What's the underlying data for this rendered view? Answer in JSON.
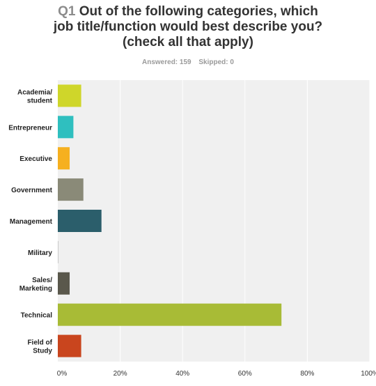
{
  "question": {
    "number": "Q1",
    "lines": [
      "Out of the following categories, which",
      "job title/function would best describe you?",
      "(check all that apply)"
    ]
  },
  "stats": {
    "answered_label": "Answered: 159",
    "skipped_label": "Skipped: 0"
  },
  "chart_data": {
    "type": "bar",
    "orientation": "horizontal",
    "categories": [
      [
        "Academia/",
        "student"
      ],
      [
        "Entrepreneur"
      ],
      [
        "Executive"
      ],
      [
        "Government"
      ],
      [
        "Management"
      ],
      [
        "Military"
      ],
      [
        "Sales/",
        "Marketing"
      ],
      [
        "Technical"
      ],
      [
        "Field of",
        "Study"
      ]
    ],
    "values": [
      7.5,
      5.0,
      3.8,
      8.2,
      14.0,
      0.2,
      3.8,
      71.7,
      7.5
    ],
    "colors": [
      "#cfd62a",
      "#2fbfbf",
      "#f6b01f",
      "#8a8a78",
      "#2b5e6b",
      "#c8c8c8",
      "#5a584c",
      "#a8bb36",
      "#c9451e"
    ],
    "xlim": [
      0,
      100
    ],
    "xticks": [
      "0%",
      "20%",
      "40%",
      "60%",
      "80%",
      "100%"
    ],
    "grid": true,
    "plot_background": "#f0f0f0"
  }
}
